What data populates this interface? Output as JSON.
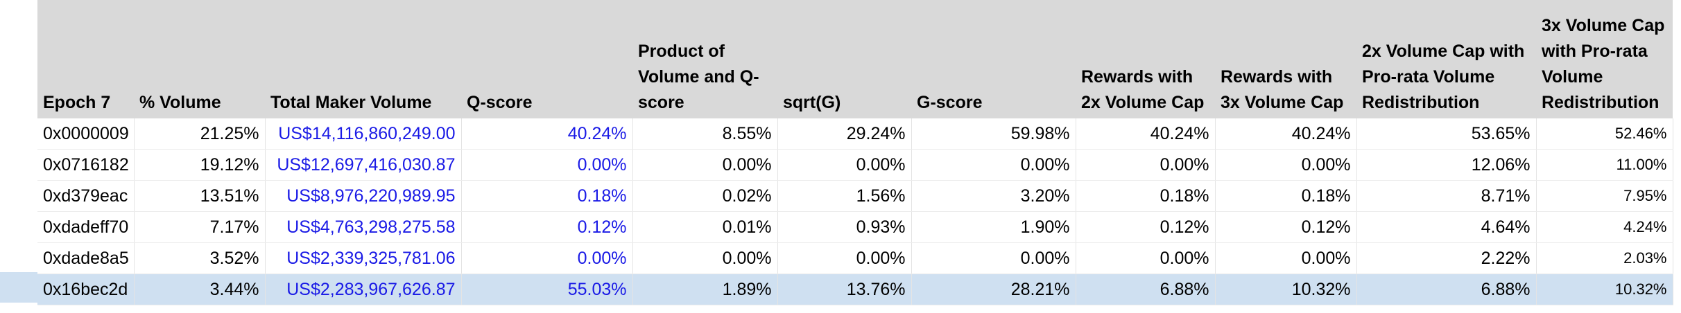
{
  "table": {
    "headers": [
      "Epoch 7",
      "% Volume",
      "Total Maker Volume",
      "Q-score",
      "Product of Volume and Q-score",
      "sqrt(G)",
      "G-score",
      "Rewards with 2x Volume Cap",
      "Rewards with 3x Volume Cap",
      "2x Volume Cap with Pro-rata Volume Redistribution",
      "3x Volume Cap with Pro-rata Volume Redistribution"
    ],
    "rows": [
      [
        "0x0000009",
        "21.25%",
        "US$14,116,860,249.00",
        "40.24%",
        "8.55%",
        "29.24%",
        "59.98%",
        "40.24%",
        "40.24%",
        "53.65%",
        "52.46%"
      ],
      [
        "0x0716182",
        "19.12%",
        "US$12,697,416,030.87",
        "0.00%",
        "0.00%",
        "0.00%",
        "0.00%",
        "0.00%",
        "0.00%",
        "12.06%",
        "11.00%"
      ],
      [
        "0xd379eac",
        "13.51%",
        "US$8,976,220,989.95",
        "0.18%",
        "0.02%",
        "1.56%",
        "3.20%",
        "0.18%",
        "0.18%",
        "8.71%",
        "7.95%"
      ],
      [
        "0xdadeff70",
        "7.17%",
        "US$4,763,298,275.58",
        "0.12%",
        "0.01%",
        "0.93%",
        "1.90%",
        "0.12%",
        "0.12%",
        "4.64%",
        "4.24%"
      ],
      [
        "0xdade8a5",
        "3.52%",
        "US$2,339,325,781.06",
        "0.00%",
        "0.00%",
        "0.00%",
        "0.00%",
        "0.00%",
        "0.00%",
        "2.22%",
        "2.03%"
      ],
      [
        "0x16bec2d",
        "3.44%",
        "US$2,283,967,626.87",
        "55.03%",
        "1.89%",
        "13.76%",
        "28.21%",
        "6.88%",
        "10.32%",
        "6.88%",
        "10.32%"
      ]
    ]
  }
}
